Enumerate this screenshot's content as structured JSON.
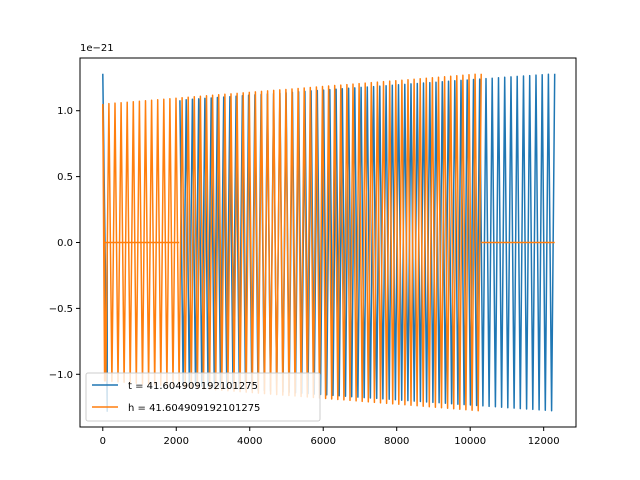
{
  "chart_data": {
    "type": "line",
    "title": "",
    "xlabel": "",
    "ylabel": "",
    "xlim": [
      -620,
      12880
    ],
    "ylim": [
      -1.4,
      1.4
    ],
    "y_offset_label": "1e−21",
    "x_ticks": [
      0,
      2000,
      4000,
      6000,
      8000,
      10000,
      12000
    ],
    "x_tick_labels": [
      "0",
      "2000",
      "4000",
      "6000",
      "8000",
      "10000",
      "12000"
    ],
    "y_ticks": [
      -1.0,
      -0.5,
      0.0,
      0.5,
      1.0
    ],
    "y_tick_labels": [
      "−1.0",
      "−0.5",
      "0.0",
      "0.5",
      "1.0"
    ],
    "grid": false,
    "legend_position": "lower-left",
    "series": [
      {
        "name": "t = 41.604909192101275",
        "color": "#1f77b4",
        "segments": [
          {
            "x_start": 0,
            "x_end": 120,
            "kind": "spike",
            "amp_start": 1.28,
            "amp_end": 1.28,
            "n_cycles": 1
          },
          {
            "x_start": 2100,
            "x_end": 12300,
            "kind": "oscillation",
            "amp_start": 1.08,
            "amp_end": 1.28,
            "n_cycles": 60
          }
        ]
      },
      {
        "name": "h = 41.604909192101275",
        "color": "#ff7f0e",
        "segments": [
          {
            "x_start": 0,
            "x_end": 50,
            "kind": "spike",
            "amp_start": 1.05,
            "amp_end": 1.05,
            "n_cycles": 1
          },
          {
            "x_start": 50,
            "x_end": 2080,
            "kind": "flat",
            "amp_start": 0,
            "amp_end": 0,
            "n_cycles": 0
          },
          {
            "x_start": 0,
            "x_end": 10300,
            "kind": "oscillation",
            "amp_start": 1.05,
            "amp_end": 1.28,
            "n_cycles": 62
          },
          {
            "x_start": 10300,
            "x_end": 12300,
            "kind": "flat",
            "amp_start": 0,
            "amp_end": 0,
            "n_cycles": 0
          }
        ]
      }
    ]
  }
}
